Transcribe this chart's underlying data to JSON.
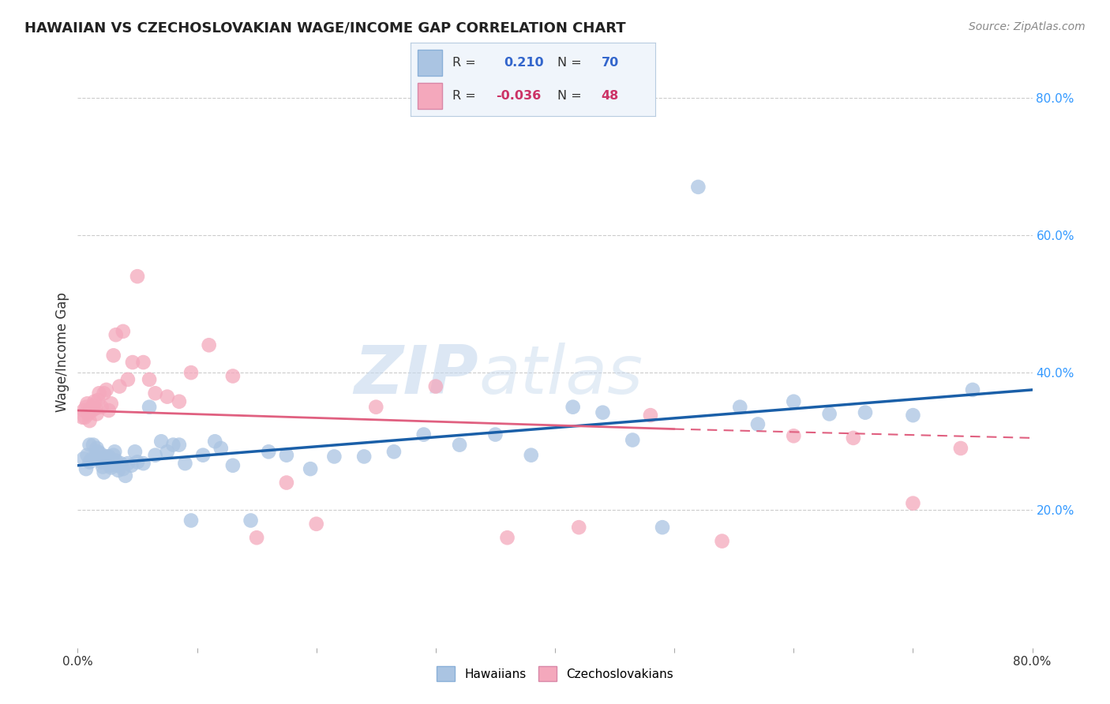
{
  "title": "HAWAIIAN VS CZECHOSLOVAKIAN WAGE/INCOME GAP CORRELATION CHART",
  "source": "Source: ZipAtlas.com",
  "ylabel": "Wage/Income Gap",
  "xlim": [
    0.0,
    0.8
  ],
  "ylim": [
    0.0,
    0.86
  ],
  "hawaiians_R": 0.21,
  "hawaiians_N": 70,
  "czechoslovakians_R": -0.036,
  "czechoslovakians_N": 48,
  "hawaiian_color": "#aac4e2",
  "czechoslovakian_color": "#f4a8bc",
  "hawaiian_line_color": "#1a5fa8",
  "czechoslovakian_line_color": "#e06080",
  "background_color": "#ffffff",
  "grid_color": "#cccccc",
  "watermark_zip": "ZIP",
  "watermark_atlas": "atlas",
  "hawaiians_x": [
    0.005,
    0.007,
    0.008,
    0.01,
    0.01,
    0.012,
    0.013,
    0.015,
    0.016,
    0.017,
    0.018,
    0.019,
    0.02,
    0.021,
    0.022,
    0.022,
    0.024,
    0.025,
    0.026,
    0.027,
    0.028,
    0.029,
    0.03,
    0.031,
    0.032,
    0.033,
    0.034,
    0.036,
    0.038,
    0.04,
    0.042,
    0.045,
    0.048,
    0.05,
    0.055,
    0.06,
    0.065,
    0.07,
    0.075,
    0.08,
    0.085,
    0.09,
    0.095,
    0.105,
    0.115,
    0.12,
    0.13,
    0.145,
    0.16,
    0.175,
    0.195,
    0.215,
    0.24,
    0.265,
    0.29,
    0.32,
    0.35,
    0.38,
    0.415,
    0.44,
    0.465,
    0.49,
    0.52,
    0.555,
    0.57,
    0.6,
    0.63,
    0.66,
    0.7,
    0.75
  ],
  "hawaiians_y": [
    0.275,
    0.26,
    0.28,
    0.27,
    0.295,
    0.275,
    0.295,
    0.278,
    0.29,
    0.285,
    0.275,
    0.282,
    0.27,
    0.263,
    0.275,
    0.255,
    0.278,
    0.27,
    0.278,
    0.265,
    0.262,
    0.27,
    0.28,
    0.285,
    0.272,
    0.265,
    0.258,
    0.268,
    0.26,
    0.25,
    0.268,
    0.265,
    0.285,
    0.27,
    0.268,
    0.35,
    0.28,
    0.3,
    0.285,
    0.295,
    0.295,
    0.268,
    0.185,
    0.28,
    0.3,
    0.29,
    0.265,
    0.185,
    0.285,
    0.28,
    0.26,
    0.278,
    0.278,
    0.285,
    0.31,
    0.295,
    0.31,
    0.28,
    0.35,
    0.342,
    0.302,
    0.175,
    0.67,
    0.35,
    0.325,
    0.358,
    0.34,
    0.342,
    0.338,
    0.375
  ],
  "czechoslovakians_x": [
    0.004,
    0.005,
    0.006,
    0.007,
    0.008,
    0.009,
    0.01,
    0.011,
    0.012,
    0.013,
    0.014,
    0.015,
    0.016,
    0.017,
    0.018,
    0.02,
    0.022,
    0.024,
    0.026,
    0.028,
    0.03,
    0.032,
    0.035,
    0.038,
    0.042,
    0.046,
    0.05,
    0.055,
    0.06,
    0.065,
    0.075,
    0.085,
    0.095,
    0.11,
    0.13,
    0.15,
    0.175,
    0.2,
    0.25,
    0.3,
    0.36,
    0.42,
    0.48,
    0.54,
    0.6,
    0.65,
    0.7,
    0.74
  ],
  "czechoslovakians_y": [
    0.335,
    0.345,
    0.335,
    0.35,
    0.355,
    0.34,
    0.33,
    0.348,
    0.345,
    0.352,
    0.358,
    0.348,
    0.34,
    0.36,
    0.37,
    0.35,
    0.37,
    0.375,
    0.345,
    0.355,
    0.425,
    0.455,
    0.38,
    0.46,
    0.39,
    0.415,
    0.54,
    0.415,
    0.39,
    0.37,
    0.365,
    0.358,
    0.4,
    0.44,
    0.395,
    0.16,
    0.24,
    0.18,
    0.35,
    0.38,
    0.16,
    0.175,
    0.338,
    0.155,
    0.308,
    0.305,
    0.21,
    0.29
  ],
  "hline_x0": 0.0,
  "hline_x1": 0.8,
  "hline_y0": 0.265,
  "hline_y1": 0.375,
  "cline_x0": 0.0,
  "cline_x1": 0.5,
  "cline_x1b": 0.8,
  "cline_y0": 0.345,
  "cline_y1": 0.318,
  "cline_y1b": 0.305
}
